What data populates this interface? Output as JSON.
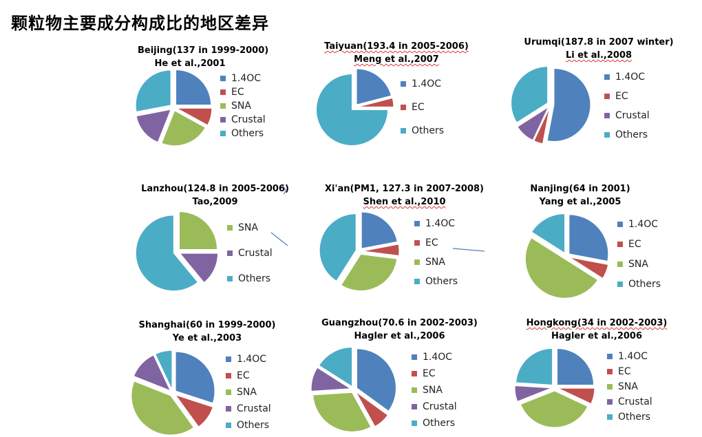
{
  "title": "颗粒物主要成分构成比的地区差异",
  "colors": {
    "1.4OC": "#4f81bd",
    "EC": "#c0504d",
    "SNA": "#9bbb59",
    "Crustal": "#8064a2",
    "Others": "#4bacc6"
  },
  "chart_data": [
    {
      "type": "pie",
      "title": "Beijing(137 in 1999-2000)",
      "subtitle": "He et al.,2001",
      "legend": [
        "1.4OC",
        "EC",
        "SNA",
        "Crustal",
        "Others"
      ],
      "series": [
        {
          "labels": [
            "1.4OC",
            "EC",
            "SNA",
            "Crustal",
            "Others"
          ],
          "values": [
            25,
            8,
            23,
            16,
            28
          ]
        }
      ]
    },
    {
      "type": "pie",
      "title": "Taiyuan(193.4 in 2005-2006)",
      "subtitle": "Meng et al.,2007",
      "legend": [
        "1.4OC",
        "EC",
        "Others"
      ],
      "series": [
        {
          "labels": [
            "1.4OC",
            "EC",
            "Others"
          ],
          "values": [
            21,
            4,
            75
          ]
        }
      ]
    },
    {
      "type": "pie",
      "title": "Urumqi(187.8 in 2007 winter)",
      "subtitle": "Li et al.,2008",
      "legend": [
        "1.4OC",
        "EC",
        "Crustal",
        "Others"
      ],
      "series": [
        {
          "labels": [
            "1.4OC",
            "EC",
            "Crustal",
            "Others"
          ],
          "values": [
            53,
            4,
            9,
            34
          ]
        }
      ]
    },
    {
      "type": "pie",
      "title": "Lanzhou(124.8 in 2005-2006)",
      "subtitle": "Tao,2009",
      "legend": [
        "SNA",
        "Crustal",
        "Others"
      ],
      "series": [
        {
          "labels": [
            "SNA",
            "Crustal",
            "Others"
          ],
          "values": [
            25,
            14,
            61
          ]
        }
      ]
    },
    {
      "type": "pie",
      "title": "Xi'an(PM1, 127.3 in 2007-2008)",
      "subtitle": "Shen et al.,2010",
      "legend": [
        "1.4OC",
        "EC",
        "SNA",
        "Others"
      ],
      "series": [
        {
          "labels": [
            "1.4OC",
            "EC",
            "SNA",
            "Others"
          ],
          "values": [
            22,
            5,
            32,
            41
          ]
        }
      ]
    },
    {
      "type": "pie",
      "title": "Nanjing(64 in 2001)",
      "subtitle": "Yang et al.,2005",
      "legend": [
        "1.4OC",
        "EC",
        "SNA",
        "Others"
      ],
      "series": [
        {
          "labels": [
            "1.4OC",
            "EC",
            "SNA",
            "Others"
          ],
          "values": [
            28,
            6,
            50,
            16
          ]
        }
      ]
    },
    {
      "type": "pie",
      "title": "Shanghai(60 in 1999-2000)",
      "subtitle": "Ye et al.,2003",
      "legend": [
        "1.4OC",
        "EC",
        "SNA",
        "Crustal",
        "Others"
      ],
      "series": [
        {
          "labels": [
            "1.4OC",
            "EC",
            "SNA",
            "Crustal",
            "Others"
          ],
          "values": [
            30,
            10,
            41,
            12,
            7
          ]
        }
      ]
    },
    {
      "type": "pie",
      "title": "Guangzhou(70.6 in 2002-2003)",
      "subtitle": "Hagler et al.,2006",
      "legend": [
        "1.4OC",
        "EC",
        "SNA",
        "Crustal",
        "Others"
      ],
      "series": [
        {
          "labels": [
            "1.4OC",
            "EC",
            "SNA",
            "Crustal",
            "Others"
          ],
          "values": [
            35,
            7,
            32,
            10,
            16
          ]
        }
      ]
    },
    {
      "type": "pie",
      "title": "Hongkong(34 in 2002-2003)",
      "subtitle": "Hagler et al.,2006",
      "legend": [
        "1.4OC",
        "EC",
        "SNA",
        "Crustal",
        "Others"
      ],
      "series": [
        {
          "labels": [
            "1.4OC",
            "EC",
            "SNA",
            "Crustal",
            "Others"
          ],
          "values": [
            25,
            7,
            37,
            7,
            24
          ]
        }
      ]
    }
  ]
}
